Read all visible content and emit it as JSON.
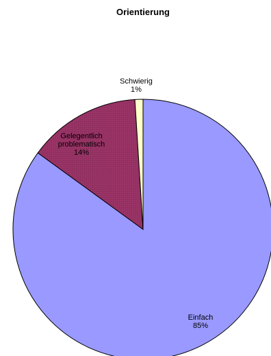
{
  "chart_data": {
    "type": "pie",
    "title": "Orientierung",
    "start_angle_deg": 0,
    "direction": "clockwise",
    "slices": [
      {
        "label": [
          "Einfach"
        ],
        "value_label": "85%",
        "value": 85,
        "color": "#9999ff"
      },
      {
        "label": [
          "Gelegentlich",
          "problematisch"
        ],
        "value_label": "14%",
        "value": 14,
        "color": "#993366"
      },
      {
        "label": [
          "Schwierig"
        ],
        "value_label": "1%",
        "value": 1,
        "color": "#ffffcc"
      }
    ],
    "legend": "none"
  }
}
